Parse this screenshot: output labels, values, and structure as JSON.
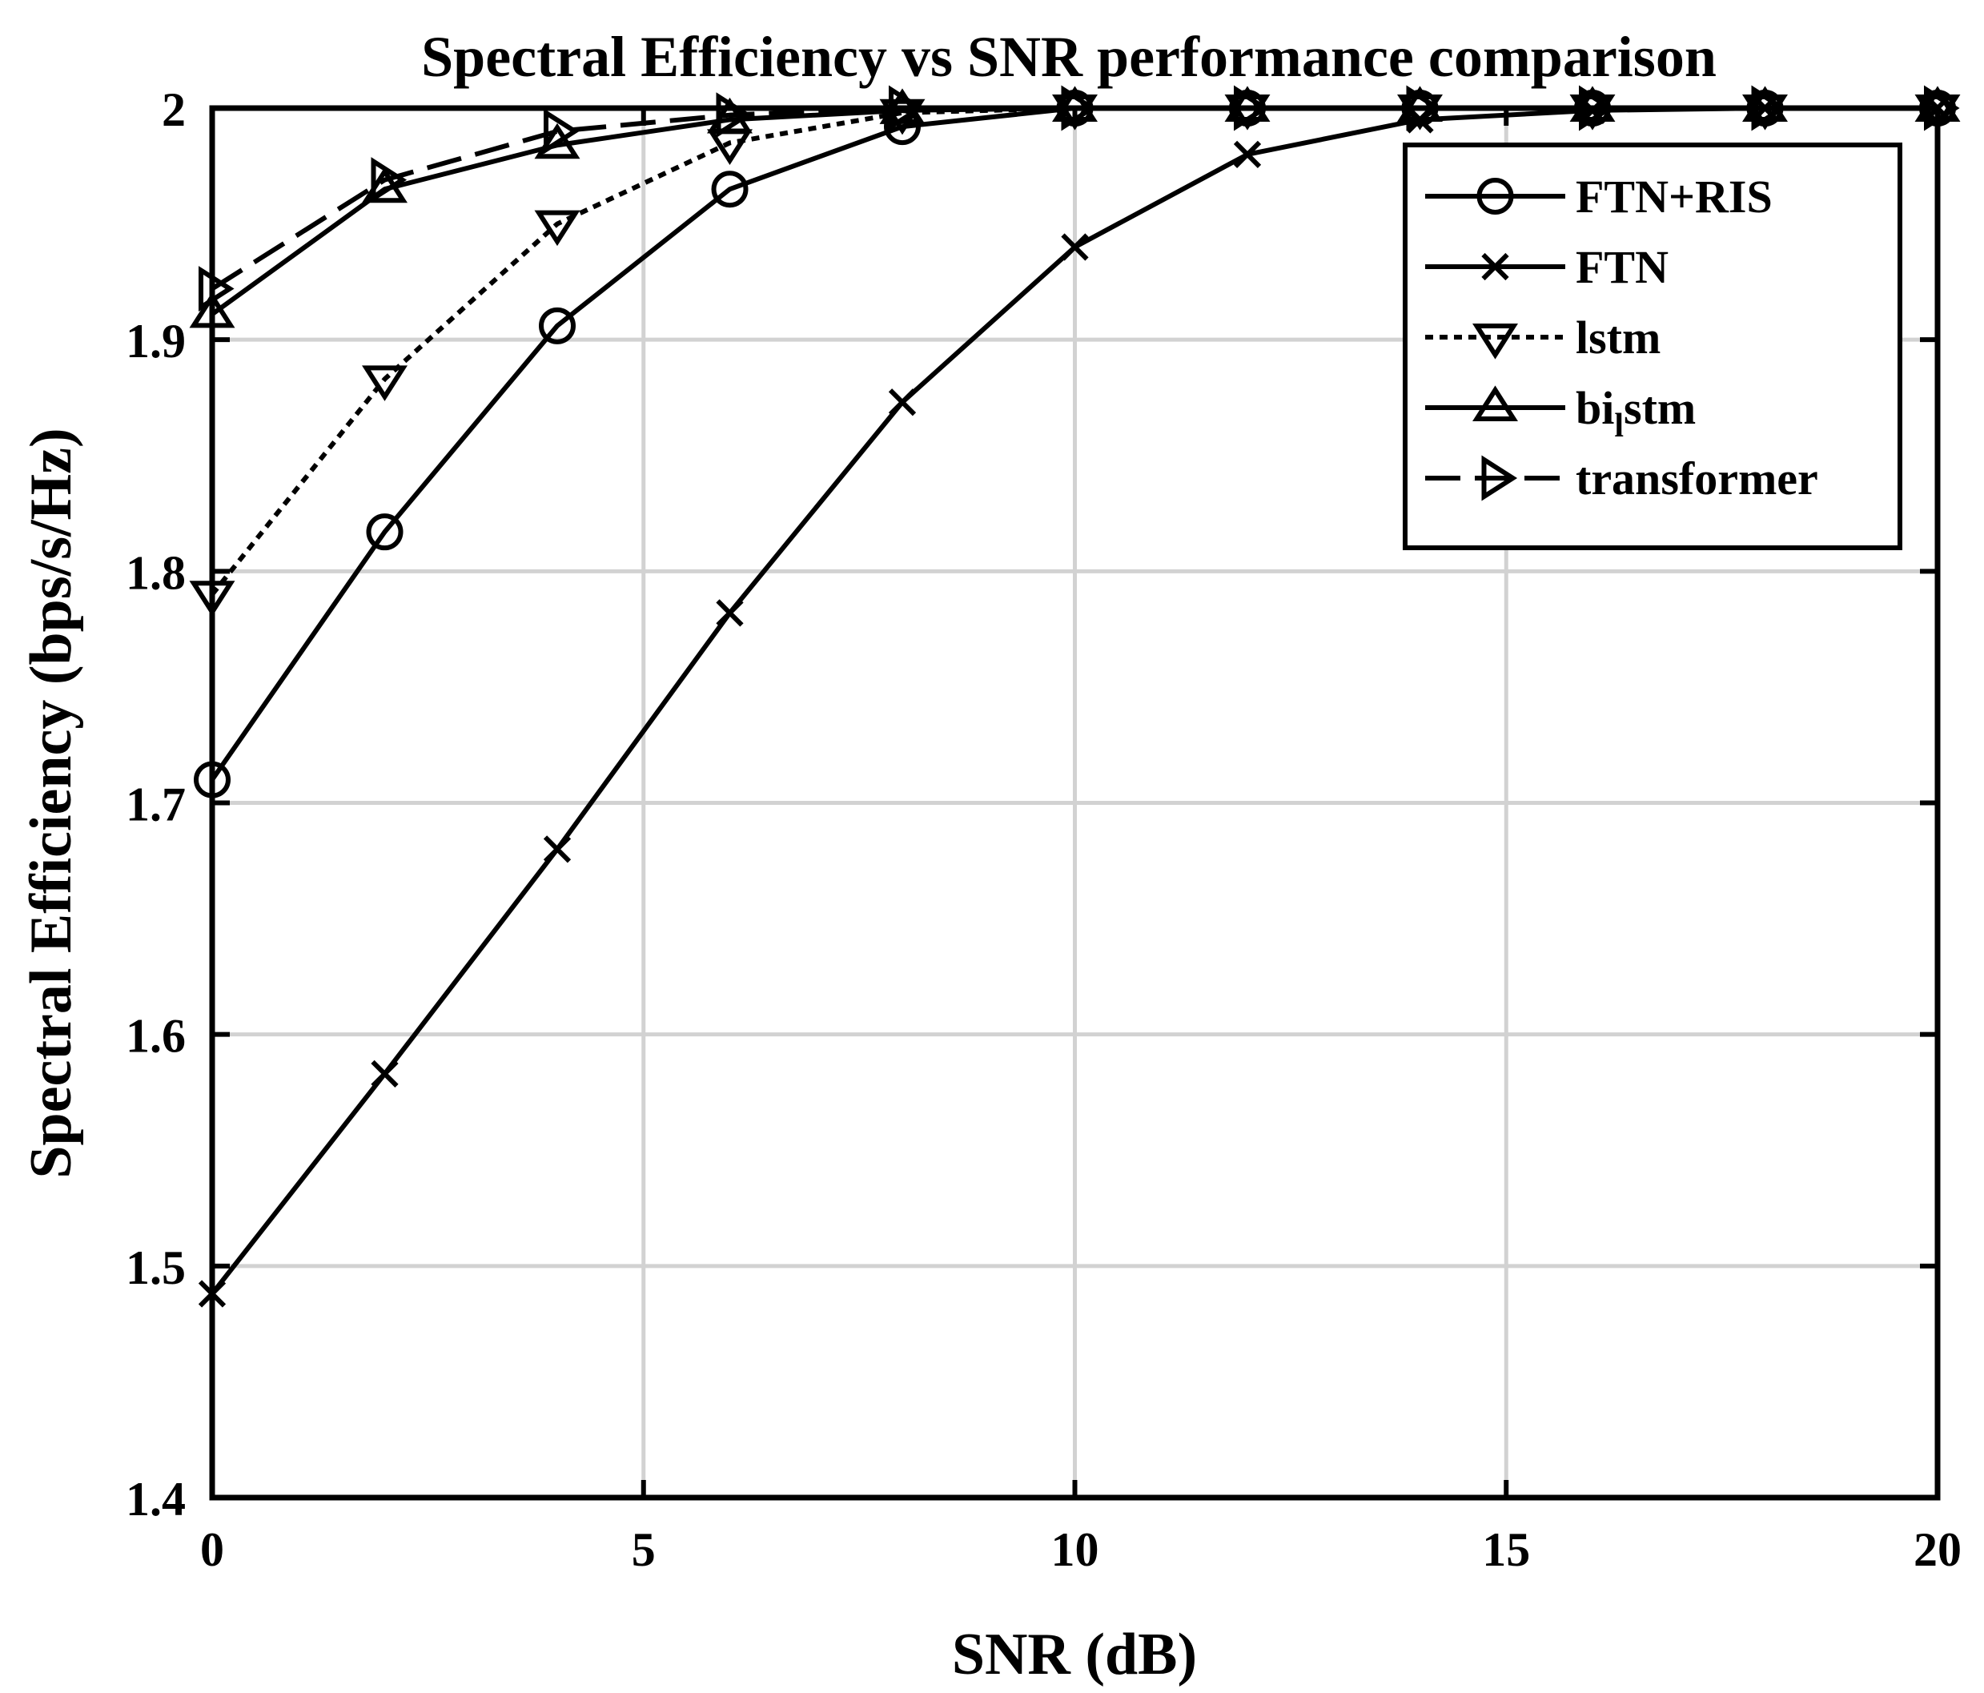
{
  "chart_data": {
    "type": "line",
    "title": "Spectral Efficiency vs SNR performance comparison",
    "xlabel": "SNR (dB)",
    "ylabel": "Spectral Efficiency (bps/s/Hz)",
    "xlim": [
      0,
      20
    ],
    "ylim": [
      1.4,
      2.0
    ],
    "xticks": [
      0,
      5,
      10,
      15,
      20
    ],
    "xtick_labels": [
      "0",
      "5",
      "10",
      "15",
      "20"
    ],
    "yticks": [
      1.4,
      1.5,
      1.6,
      1.7,
      1.8,
      1.9,
      2.0
    ],
    "ytick_labels": [
      "1.4",
      "1.5",
      "1.6",
      "1.7",
      "1.8",
      "1.9",
      "2"
    ],
    "grid": true,
    "legend_position": "top-right",
    "series": [
      {
        "name": "FTN+RIS",
        "marker": "circle",
        "line_style": "solid",
        "x": [
          0,
          2,
          4,
          6,
          8,
          10,
          12,
          14,
          16,
          18,
          20
        ],
        "y": [
          1.71,
          1.817,
          1.906,
          1.965,
          1.992,
          2.0,
          2.0,
          2.0,
          2.0,
          2.0,
          2.0
        ]
      },
      {
        "name": "FTN",
        "marker": "x",
        "line_style": "solid",
        "x": [
          0,
          2,
          4,
          6,
          8,
          10,
          12,
          14,
          16,
          18,
          20
        ],
        "y": [
          1.488,
          1.583,
          1.68,
          1.782,
          1.873,
          1.94,
          1.98,
          1.995,
          1.999,
          2.0,
          2.0
        ]
      },
      {
        "name": "lstm",
        "marker": "triangle-down",
        "line_style": "dotted",
        "x": [
          0,
          2,
          4,
          6,
          8,
          10,
          12,
          14,
          16,
          18,
          20
        ],
        "y": [
          1.79,
          1.883,
          1.95,
          1.985,
          1.998,
          2.0,
          2.0,
          2.0,
          2.0,
          2.0,
          2.0
        ]
      },
      {
        "name": "bi_lstm",
        "label_main": "bi",
        "label_sub": "l",
        "label_rest": "stm",
        "marker": "triangle-up",
        "line_style": "solid",
        "x": [
          0,
          2,
          4,
          6,
          8,
          10,
          12,
          14,
          16,
          18,
          20
        ],
        "y": [
          1.911,
          1.965,
          1.984,
          1.995,
          1.999,
          2.0,
          2.0,
          2.0,
          2.0,
          2.0,
          2.0
        ]
      },
      {
        "name": "transformer",
        "marker": "triangle-right",
        "line_style": "dashed",
        "x": [
          0,
          2,
          4,
          6,
          8,
          10,
          12,
          14,
          16,
          18,
          20
        ],
        "y": [
          1.922,
          1.969,
          1.99,
          1.997,
          2.0,
          2.0,
          2.0,
          2.0,
          2.0,
          2.0,
          2.0
        ]
      }
    ]
  },
  "colors": {
    "line": "#000000",
    "grid": "#d2d2d2",
    "background": "#ffffff"
  }
}
